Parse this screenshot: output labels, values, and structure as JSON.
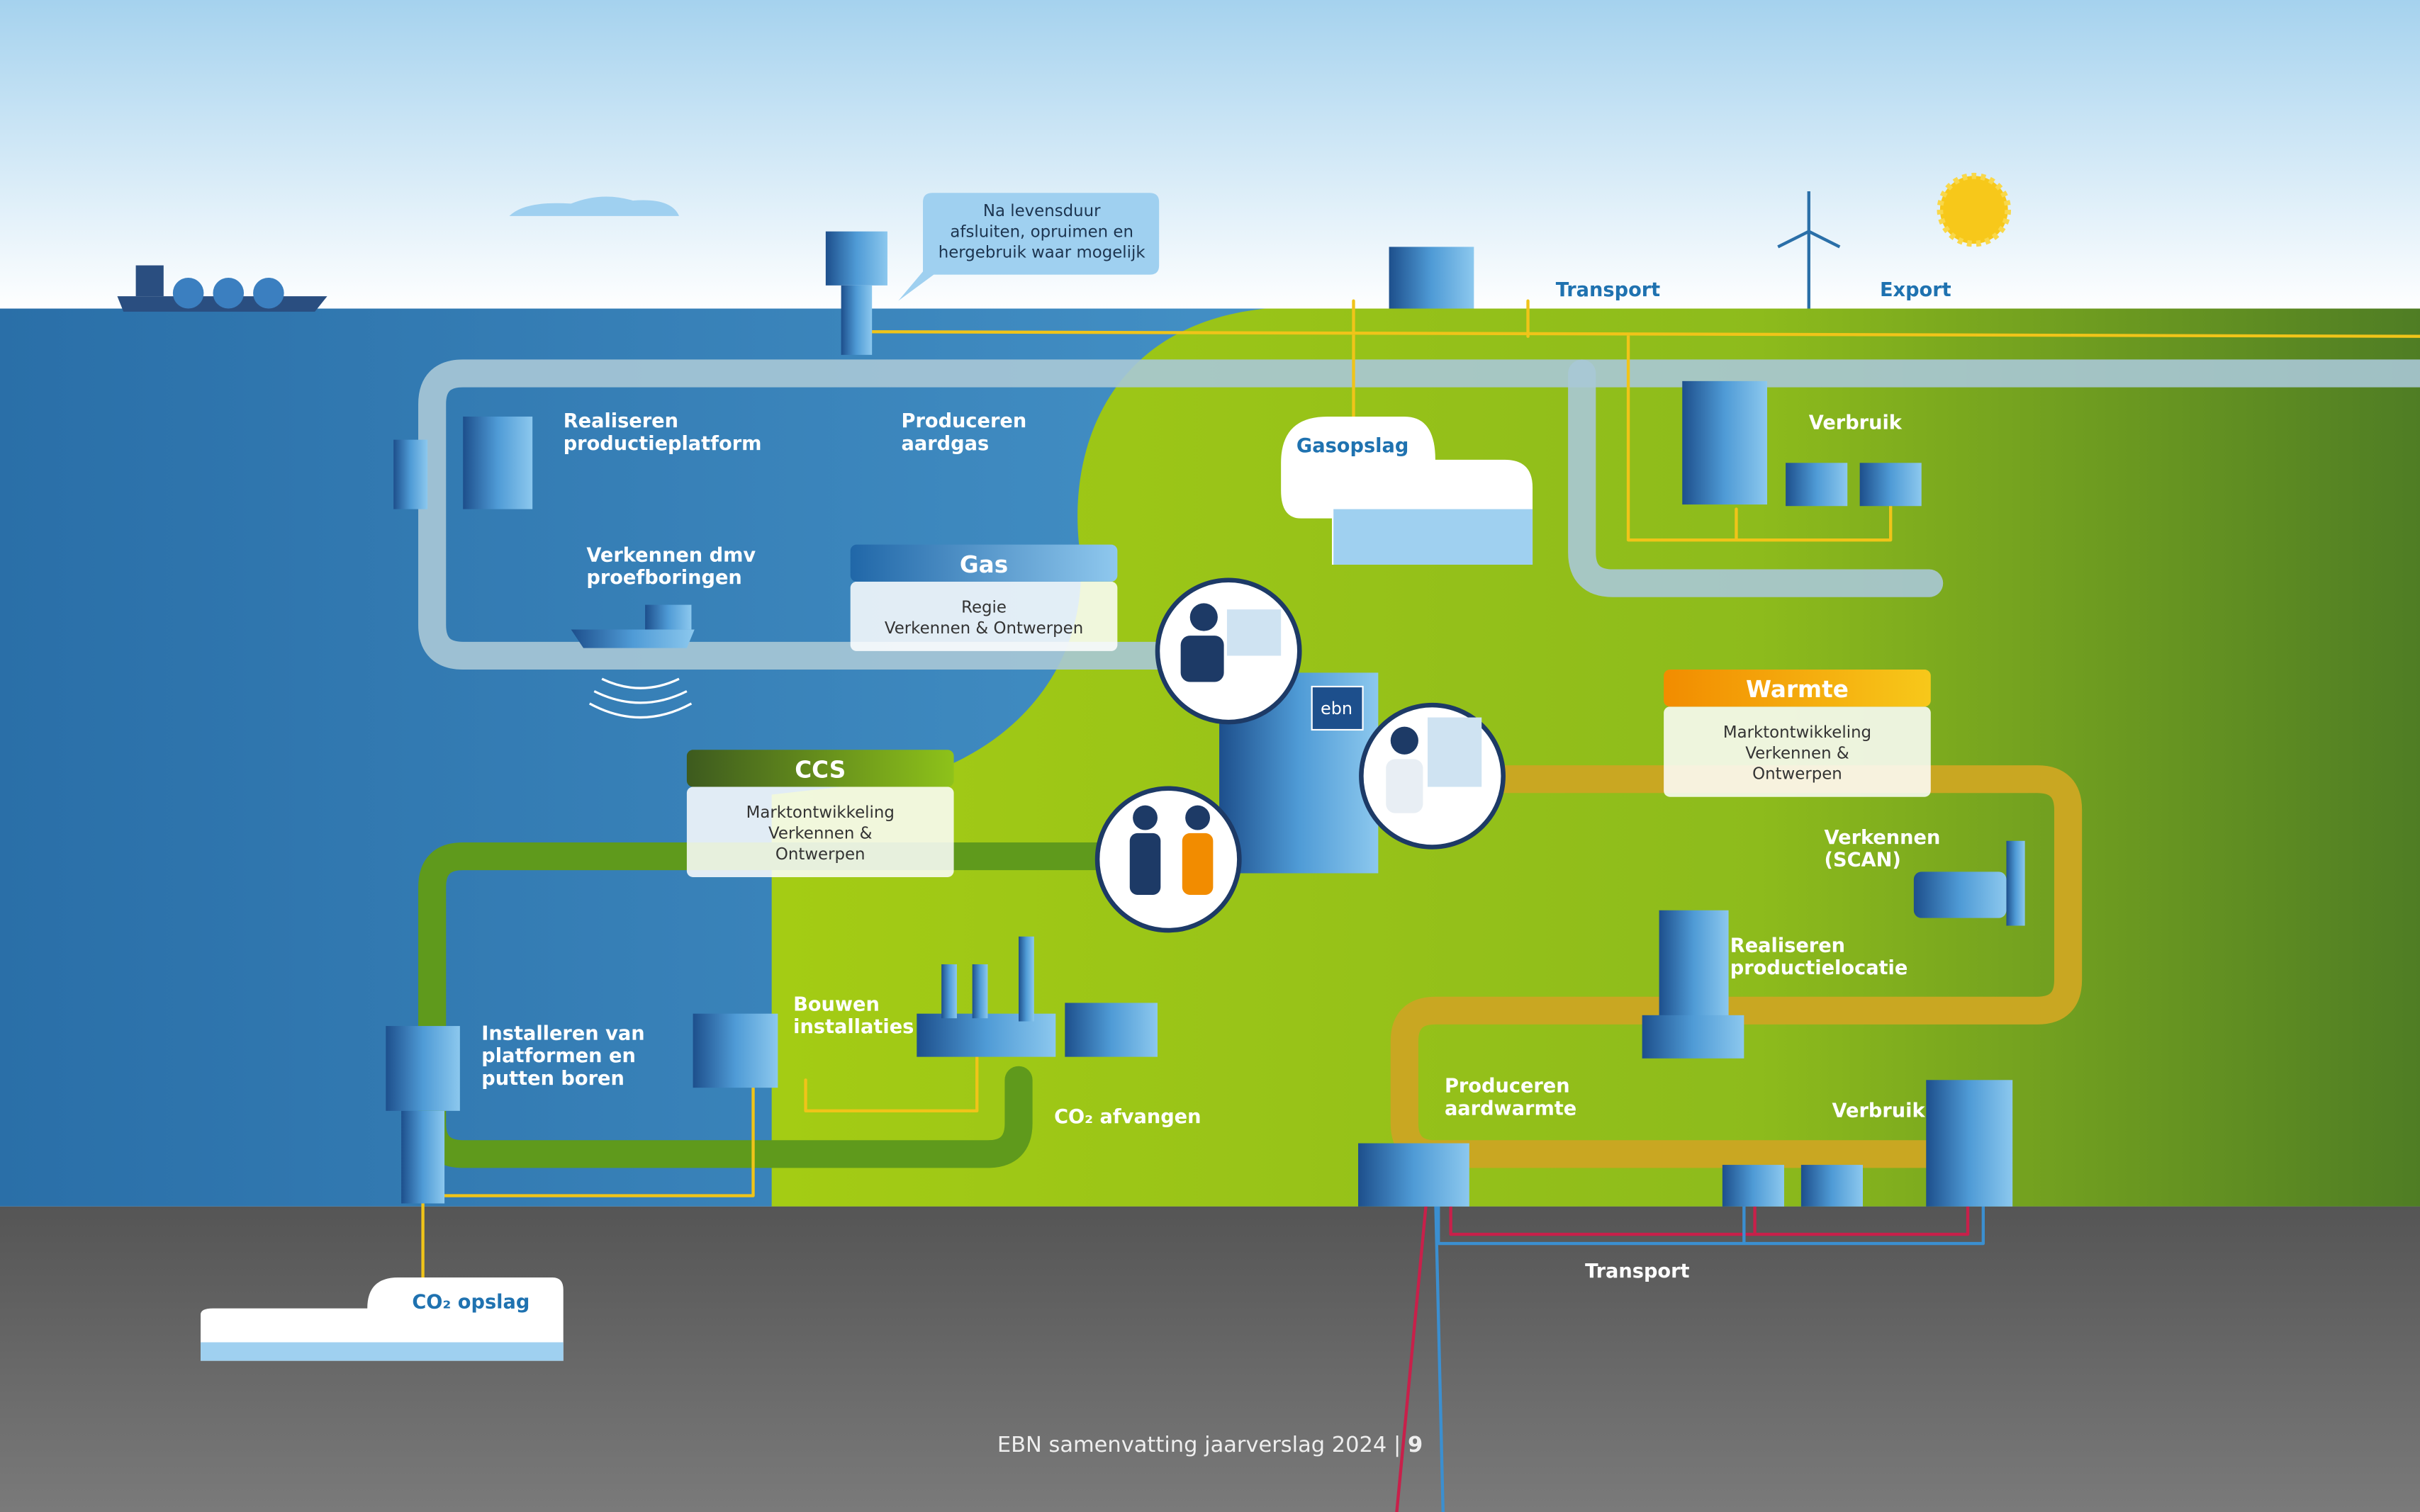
{
  "callout": {
    "lines": [
      "Na levensduur",
      "afsluiten, opruimen en",
      "hergebruik waar mogelijk"
    ]
  },
  "labels": [
    {
      "lines": [
        "Realiseren",
        "productieplatform"
      ]
    },
    {
      "lines": [
        "Produceren",
        "aardgas"
      ]
    },
    {
      "lines": [
        "Verkennen dmv",
        "proefboringen"
      ]
    },
    {
      "lines": [
        "Gasopslag"
      ]
    },
    {
      "lines": [
        "Transport"
      ]
    },
    {
      "lines": [
        "Export"
      ]
    },
    {
      "lines": [
        "Verbruik"
      ]
    },
    {
      "lines": [
        "Verkennen",
        "(SCAN)"
      ]
    },
    {
      "lines": [
        "Realiseren",
        "productielocatie"
      ]
    },
    {
      "lines": [
        "Produceren",
        "aardwarmte"
      ]
    },
    {
      "lines": [
        "Verbruik"
      ]
    },
    {
      "lines": [
        "Transport"
      ]
    },
    {
      "lines": [
        "Installeren van",
        "platformen en",
        "putten boren"
      ]
    },
    {
      "lines": [
        "Bouwen",
        "installaties"
      ]
    },
    {
      "lines": [
        "CO₂ afvangen"
      ]
    },
    {
      "lines": [
        "CO₂ opslag"
      ]
    }
  ],
  "boxes": [
    {
      "title": "Gas",
      "lines": [
        "Regie",
        "Verkennen & Ontwerpen"
      ]
    },
    {
      "title": "Warmte",
      "lines": [
        "Marktontwikkeling",
        "Verkennen &",
        "Ontwerpen"
      ]
    },
    {
      "title": "CCS",
      "lines": [
        "Marktontwikkeling",
        "Verkennen &",
        "Ontwerpen"
      ]
    }
  ],
  "logo": "ebn",
  "footer": {
    "text": "EBN samenvatting jaarverslag 2024",
    "separator": "|",
    "page": "9"
  }
}
